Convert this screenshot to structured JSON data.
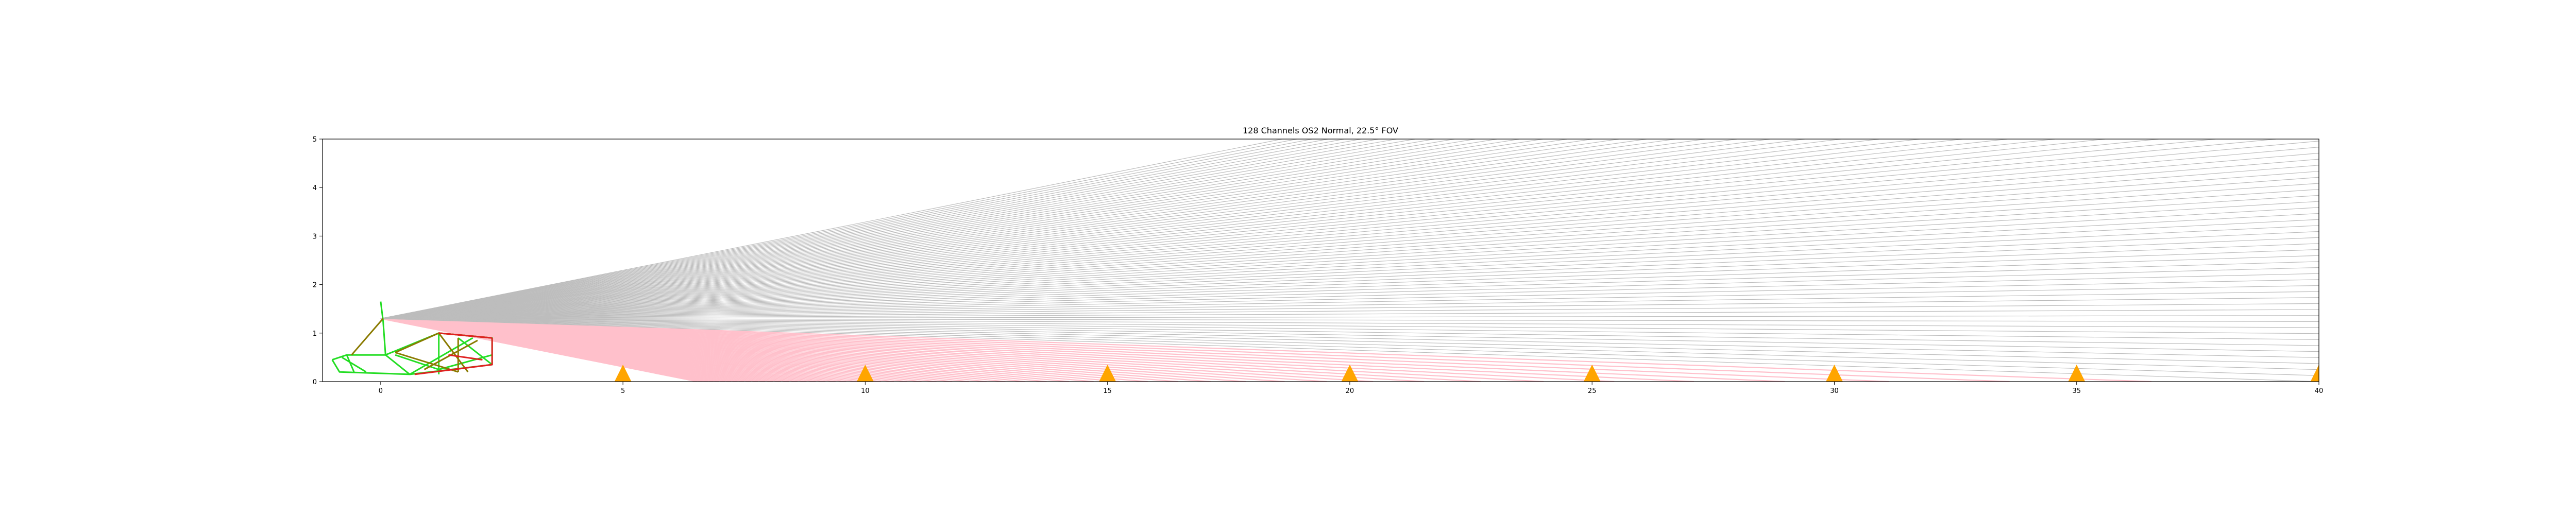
{
  "chart_data": {
    "type": "line",
    "title": "128 Channels OS2 Normal, 22.5° FOV",
    "xlabel": "",
    "ylabel": "",
    "xlim": [
      -1.2,
      40
    ],
    "ylim": [
      0,
      5
    ],
    "grid": false,
    "x_ticks": [
      "0",
      "5",
      "10",
      "15",
      "20",
      "25",
      "30",
      "35",
      "40"
    ],
    "x_tick_values": [
      0,
      5,
      10,
      15,
      20,
      25,
      30,
      35,
      40
    ],
    "y_ticks": [
      "0",
      "1",
      "2",
      "3",
      "4",
      "5"
    ],
    "y_tick_values": [
      0,
      1,
      2,
      3,
      4,
      5
    ],
    "sensor": {
      "x": 0.0,
      "y": 1.3,
      "channels": 128,
      "fov_deg": 22.5,
      "beam_color": "#bdbdbd",
      "ground_hit_color": "#ffc0cb",
      "ground_hit_x_range": [
        0.0,
        7.9
      ]
    },
    "cones": {
      "color": "#ffa500",
      "height": 0.35,
      "width": 0.35,
      "x": [
        5,
        10,
        15,
        20,
        25,
        30,
        35,
        40
      ]
    },
    "vehicle": {
      "colors": [
        "#22dd22",
        "#8a7a00",
        "#e02020"
      ],
      "frame_x": [
        -1.0,
        2.3
      ],
      "frame_y": [
        0.15,
        1.65
      ]
    }
  },
  "colors": {
    "axes": "#000000",
    "background": "#ffffff"
  }
}
